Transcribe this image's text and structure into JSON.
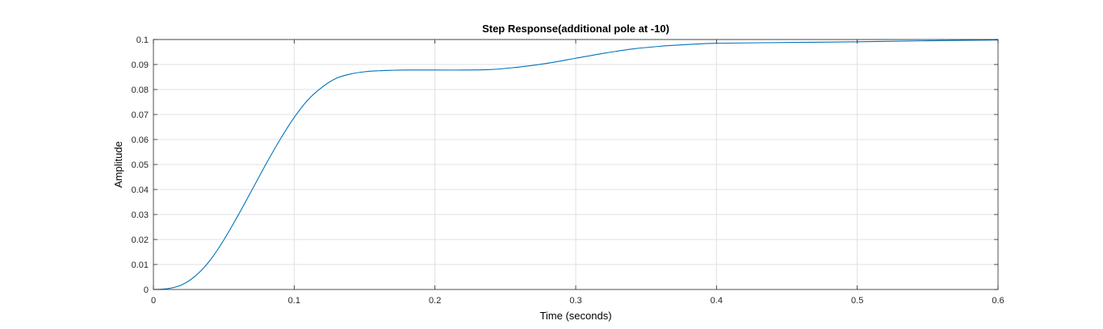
{
  "chart_data": {
    "type": "line",
    "title": "Step Response(additional pole at -10)",
    "xlabel": "Time (seconds)",
    "ylabel": "Amplitude",
    "xlim": [
      0,
      0.6
    ],
    "ylim": [
      0,
      0.1
    ],
    "xticks": [
      "0",
      "0.1",
      "0.2",
      "0.3",
      "0.4",
      "0.5",
      "0.6"
    ],
    "yticks": [
      "0",
      "0.01",
      "0.02",
      "0.03",
      "0.04",
      "0.05",
      "0.06",
      "0.07",
      "0.08",
      "0.09",
      "0.1"
    ],
    "grid": true,
    "colors": {
      "line": "#0072BD",
      "grid": "#e0e0e0",
      "axes": "#262626",
      "steady_state": "#262626"
    },
    "steady_state": 0.1,
    "series": [
      {
        "x": [
          0,
          0.01,
          0.02,
          0.03,
          0.04,
          0.05,
          0.06,
          0.07,
          0.08,
          0.09,
          0.1,
          0.11,
          0.12,
          0.13,
          0.14,
          0.15,
          0.16,
          0.17,
          0.18,
          0.19,
          0.2,
          0.22,
          0.24,
          0.26,
          0.28,
          0.3,
          0.32,
          0.34,
          0.36,
          0.38,
          0.4,
          0.45,
          0.5,
          0.55,
          0.6
        ],
        "values": [
          0,
          0.0003,
          0.0018,
          0.0055,
          0.0115,
          0.0198,
          0.0295,
          0.0398,
          0.0502,
          0.06,
          0.0688,
          0.076,
          0.081,
          0.0845,
          0.0862,
          0.0871,
          0.0875,
          0.0877,
          0.0878,
          0.0878,
          0.0878,
          0.0878,
          0.088,
          0.089,
          0.0905,
          0.0925,
          0.0945,
          0.0962,
          0.0973,
          0.098,
          0.0985,
          0.0988,
          0.0991,
          0.0995,
          0.0998
        ]
      }
    ]
  }
}
